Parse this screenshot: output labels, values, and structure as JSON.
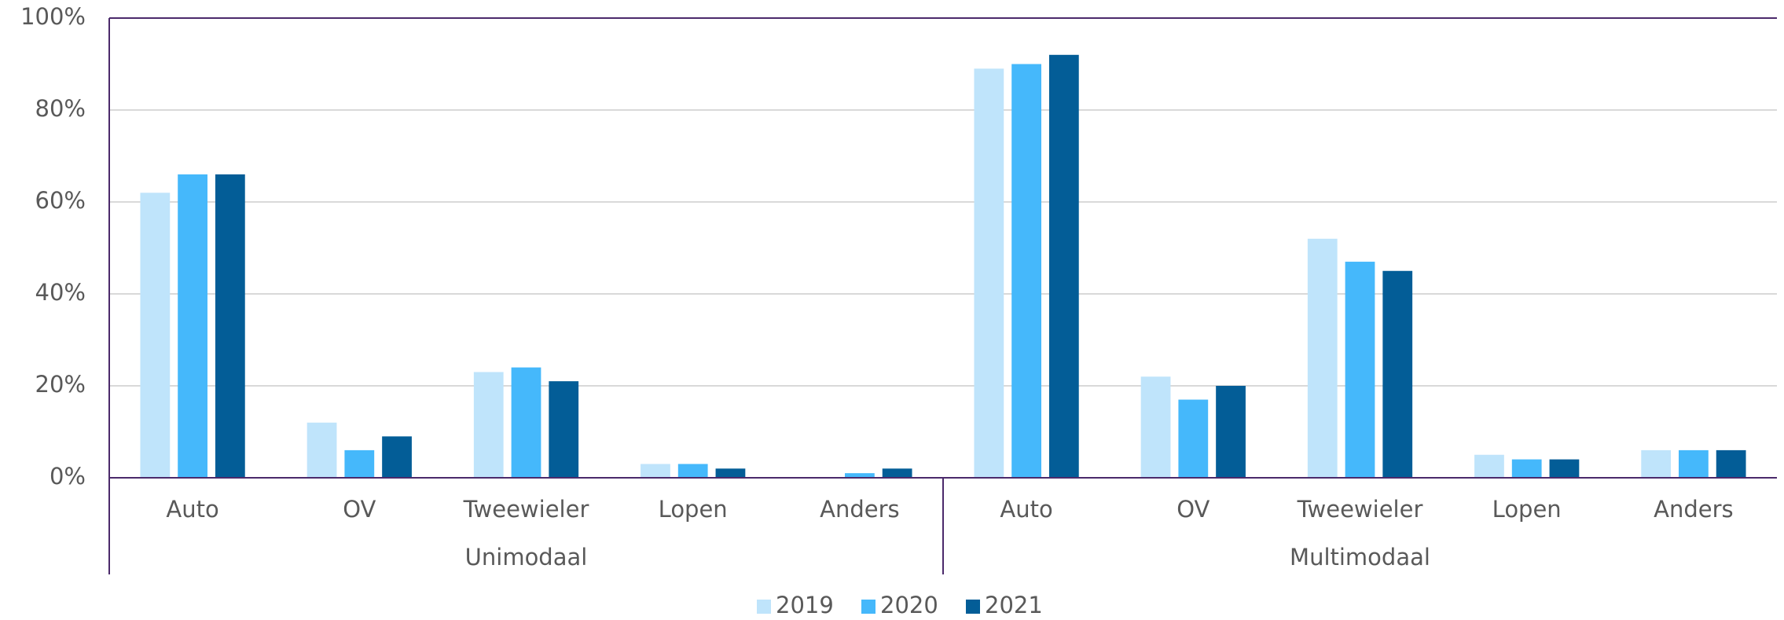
{
  "chart_data": {
    "type": "bar",
    "groups": [
      {
        "name": "Unimodaal",
        "categories": [
          "Auto",
          "OV",
          "Tweewieler",
          "Lopen",
          "Anders"
        ]
      },
      {
        "name": "Multimodaal",
        "categories": [
          "Auto",
          "OV",
          "Tweewieler",
          "Lopen",
          "Anders"
        ]
      }
    ],
    "series": [
      {
        "name": "2019",
        "color": "#bfe4fb",
        "values": [
          62,
          12,
          23,
          3,
          0,
          89,
          22,
          52,
          5,
          6
        ]
      },
      {
        "name": "2020",
        "color": "#45b8fb",
        "values": [
          66,
          6,
          24,
          3,
          1,
          90,
          17,
          47,
          4,
          6
        ]
      },
      {
        "name": "2021",
        "color": "#035d97",
        "values": [
          66,
          9,
          21,
          2,
          2,
          92,
          20,
          45,
          4,
          6
        ]
      }
    ],
    "ylim": [
      0,
      100
    ],
    "yticks": [
      {
        "value": 0,
        "label": "0%"
      },
      {
        "value": 20,
        "label": "20%"
      },
      {
        "value": 40,
        "label": "40%"
      },
      {
        "value": 60,
        "label": "60%"
      },
      {
        "value": 80,
        "label": "80%"
      },
      {
        "value": 100,
        "label": "100%"
      }
    ],
    "grid": true,
    "legend": "bottom"
  }
}
